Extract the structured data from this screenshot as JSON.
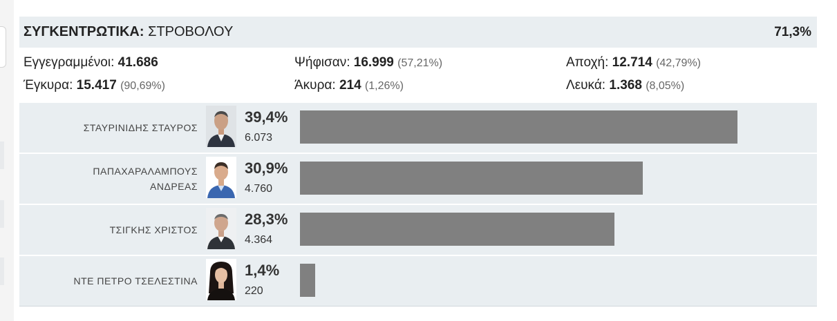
{
  "header": {
    "label": "ΣΥΓΚΕΝΤΡΩΤΙΚΑ:",
    "district": "ΣΤΡΟΒΟΛΟΥ",
    "turnout": "71,3%"
  },
  "stats": {
    "registered_label": "Εγγεγραμμένοι:",
    "registered_value": "41.686",
    "voted_label": "Ψήφισαν:",
    "voted_value": "16.999",
    "voted_pct": "(57,21%)",
    "abstention_label": "Αποχή:",
    "abstention_value": "12.714",
    "abstention_pct": "(42,79%)",
    "valid_label": "Έγκυρα:",
    "valid_value": "15.417",
    "valid_pct": "(90,69%)",
    "invalid_label": "Άκυρα:",
    "invalid_value": "214",
    "invalid_pct": "(1,26%)",
    "blank_label": "Λευκά:",
    "blank_value": "1.368",
    "blank_pct": "(8,05%)"
  },
  "candidates": [
    {
      "name": "ΣΤΑΥΡΙΝΙΔΗΣ ΣΤΑΥΡΟΣ",
      "pct": "39,4%",
      "votes": "6.073",
      "share": 39.4
    },
    {
      "name": "ΠΑΠΑΧΑΡΑΛΑΜΠΟΥΣ ΑΝΔΡΕΑΣ",
      "pct": "30,9%",
      "votes": "4.760",
      "share": 30.9
    },
    {
      "name": "ΤΣΙΓΚΗΣ ΧΡΙΣΤΟΣ",
      "pct": "28,3%",
      "votes": "4.364",
      "share": 28.3
    },
    {
      "name": "ΝΤΕ ΠΕΤΡΟ ΤΣΕΛΕΣΤΙΝΑ",
      "pct": "1,4%",
      "votes": "220",
      "share": 1.4
    }
  ],
  "bar_color": "#808080"
}
